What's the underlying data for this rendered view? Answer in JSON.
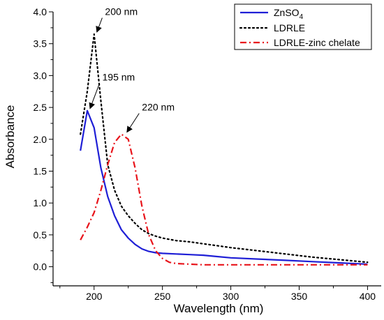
{
  "chart_data": {
    "type": "line",
    "xlabel": "Wavelength (nm)",
    "ylabel": "Absorbance",
    "xlim": [
      170,
      410
    ],
    "ylim": [
      -0.3,
      4.0
    ],
    "xticks": [
      200,
      250,
      300,
      350,
      400
    ],
    "xtick_labels": [
      "200",
      "250",
      "300",
      "350",
      "400"
    ],
    "yticks": [
      0.0,
      0.5,
      1.0,
      1.5,
      2.0,
      2.5,
      3.0,
      3.5,
      4.0
    ],
    "ytick_labels": [
      "0.0",
      "0.5",
      "1.0",
      "1.5",
      "2.0",
      "2.5",
      "3.0",
      "3.5",
      "4.0"
    ],
    "grid": false,
    "legend_position": "top-right",
    "series": [
      {
        "name_main": "ZnSO",
        "name_sub": "4",
        "color": "#1f1fd6",
        "style": "solid",
        "x": [
          190,
          195,
          200,
          205,
          210,
          215,
          220,
          225,
          230,
          235,
          240,
          245,
          250,
          260,
          270,
          280,
          290,
          300,
          320,
          340,
          360,
          380,
          400
        ],
        "y": [
          1.82,
          2.45,
          2.18,
          1.55,
          1.1,
          0.8,
          0.58,
          0.45,
          0.35,
          0.28,
          0.24,
          0.22,
          0.21,
          0.2,
          0.19,
          0.18,
          0.16,
          0.14,
          0.12,
          0.1,
          0.08,
          0.06,
          0.04
        ]
      },
      {
        "name": "LDRLE",
        "color": "#000000",
        "style": "dotted",
        "x": [
          190,
          195,
          200,
          205,
          210,
          215,
          220,
          225,
          230,
          235,
          240,
          245,
          250,
          260,
          270,
          280,
          290,
          300,
          320,
          340,
          360,
          380,
          400
        ],
        "y": [
          2.08,
          2.75,
          3.65,
          2.6,
          1.6,
          1.2,
          0.95,
          0.8,
          0.68,
          0.58,
          0.52,
          0.48,
          0.45,
          0.41,
          0.39,
          0.36,
          0.33,
          0.3,
          0.25,
          0.2,
          0.15,
          0.11,
          0.07
        ]
      },
      {
        "name": "LDRLE-zinc chelate",
        "color": "#e8141b",
        "style": "dashdot",
        "x": [
          190,
          195,
          200,
          205,
          210,
          215,
          220,
          225,
          230,
          235,
          240,
          245,
          250,
          255,
          260,
          270,
          280,
          300,
          320,
          340,
          360,
          380,
          400
        ],
        "y": [
          0.42,
          0.62,
          0.85,
          1.2,
          1.6,
          1.95,
          2.08,
          2.0,
          1.55,
          0.95,
          0.5,
          0.25,
          0.13,
          0.07,
          0.05,
          0.04,
          0.03,
          0.03,
          0.03,
          0.03,
          0.03,
          0.03,
          0.03
        ]
      }
    ],
    "annotations": [
      {
        "text": "200 nm",
        "target": [
          200,
          3.65
        ],
        "label_at": [
          208,
          3.95
        ]
      },
      {
        "text": "195 nm",
        "target": [
          195,
          2.45
        ],
        "label_at": [
          206,
          2.92
        ]
      },
      {
        "text": "220 nm",
        "target": [
          222,
          2.08
        ],
        "label_at": [
          235,
          2.45
        ]
      }
    ]
  }
}
